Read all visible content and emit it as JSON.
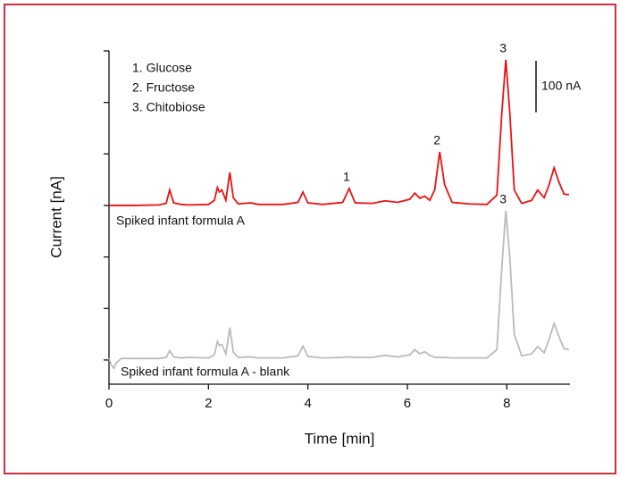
{
  "chart_data": {
    "type": "line",
    "x_label": "Time [min]",
    "y_label": "Current [nA]",
    "x": [
      0,
      0.05,
      0.1,
      0.15,
      0.25,
      0.5,
      1.0,
      1.15,
      1.22,
      1.3,
      1.45,
      1.6,
      2.0,
      2.12,
      2.18,
      2.22,
      2.27,
      2.35,
      2.43,
      2.5,
      2.6,
      2.85,
      3.0,
      3.5,
      3.8,
      3.9,
      4.0,
      4.3,
      4.7,
      4.83,
      4.95,
      5.3,
      5.55,
      5.8,
      6.05,
      6.15,
      6.25,
      6.35,
      6.45,
      6.55,
      6.65,
      6.75,
      6.9,
      7.25,
      7.6,
      7.8,
      7.9,
      7.98,
      8.06,
      8.15,
      8.3,
      8.5,
      8.62,
      8.75,
      8.85,
      8.95,
      9.05,
      9.15,
      9.25
    ],
    "series": [
      {
        "name": "Spiked infant formula A",
        "color": "#ee1111",
        "values": [
          300,
          300,
          300,
          300,
          300,
          300,
          301,
          304,
          330,
          305,
          302,
          301,
          302,
          310,
          335,
          326,
          330,
          310,
          364,
          315,
          303,
          305,
          302,
          302,
          306,
          326,
          305,
          302,
          306,
          333,
          305,
          304,
          309,
          306,
          312,
          324,
          314,
          318,
          310,
          330,
          404,
          340,
          306,
          303,
          302,
          320,
          480,
          583,
          480,
          330,
          304,
          310,
          330,
          315,
          340,
          373,
          345,
          322,
          321
        ],
        "peaks": [
          {
            "label": "1",
            "x": 4.83
          },
          {
            "label": "2",
            "x": 6.65
          },
          {
            "label": "3",
            "x": 7.98
          }
        ]
      },
      {
        "name": "Spiked infant formula A - blank",
        "color": "#bbbbbb",
        "values": [
          3,
          -10,
          -16,
          -5,
          3,
          3,
          3,
          5,
          18,
          6,
          4,
          5,
          4,
          10,
          36,
          28,
          30,
          12,
          63,
          15,
          5,
          6,
          4,
          4,
          8,
          27,
          7,
          4,
          5,
          6,
          5,
          5,
          9,
          6,
          10,
          20,
          12,
          16,
          9,
          5,
          5,
          5,
          4,
          4,
          4,
          20,
          180,
          290,
          200,
          50,
          8,
          12,
          26,
          14,
          40,
          71,
          45,
          22,
          20
        ],
        "peaks": [
          {
            "label": "3",
            "x": 7.98
          }
        ]
      }
    ],
    "legend_text": [
      "1. Glucose",
      "2. Fructose",
      "3. Chitobiose"
    ],
    "scale_bar": {
      "label": "100 nA",
      "value": 100
    },
    "xlim": [
      0,
      9.27
    ],
    "xticks": [
      0,
      2,
      4,
      6,
      8
    ],
    "ylim": [
      -47,
      600
    ],
    "yticks": [
      0,
      100,
      200,
      300,
      400,
      500,
      600
    ]
  }
}
